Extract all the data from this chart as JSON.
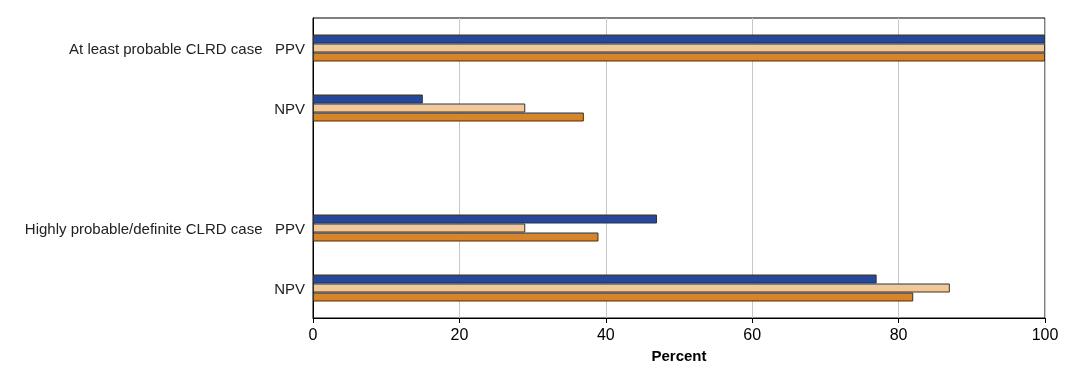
{
  "chart_data": {
    "type": "bar",
    "orientation": "horizontal",
    "xlabel": "Percent",
    "categories": [
      "At least probable CLRD case   PPV",
      "NPV",
      null,
      "Highly probable/definite CLRD case   PPV",
      "NPV"
    ],
    "series": [
      {
        "color": "#27479a",
        "values": [
          100,
          15,
          null,
          47,
          77
        ]
      },
      {
        "color": "#f2c898",
        "values": [
          100,
          29,
          null,
          29,
          87
        ]
      },
      {
        "color": "#d8842a",
        "values": [
          100,
          37,
          null,
          39,
          82
        ]
      }
    ],
    "xlim": [
      0,
      100
    ],
    "xticks": [
      0,
      20,
      40,
      60,
      80,
      100
    ],
    "grid": "x"
  }
}
